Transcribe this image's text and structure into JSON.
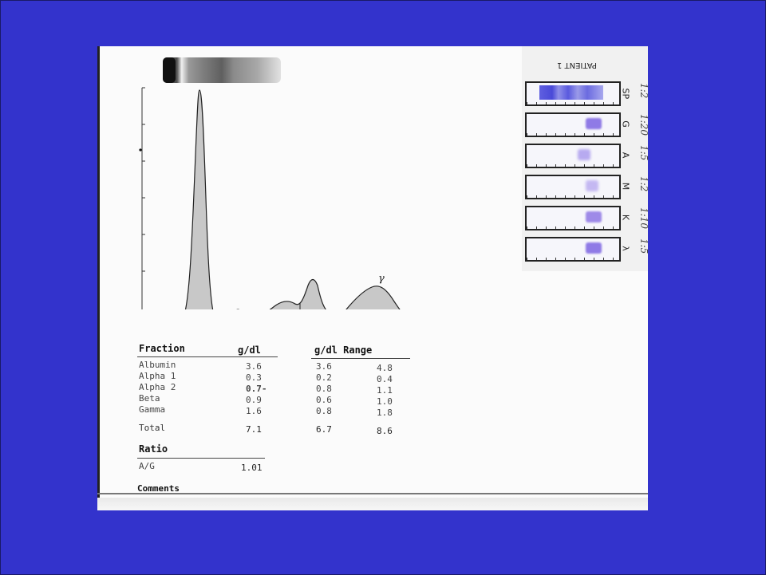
{
  "report": {
    "table_headers": {
      "fraction": "Fraction",
      "gdl": "g/dl",
      "gdl_range": "g/dl Range"
    },
    "rows": [
      {
        "name": "Albumin",
        "value": "3.6",
        "low": "3.6",
        "high": "4.8"
      },
      {
        "name": "Alpha 1",
        "value": "0.3",
        "low": "0.2",
        "high": "0.4"
      },
      {
        "name": "Alpha 2",
        "value": "0.7-",
        "low": "0.8",
        "high": "1.1"
      },
      {
        "name": "Beta",
        "value": "0.9",
        "low": "0.6",
        "high": "1.0"
      },
      {
        "name": "Gamma",
        "value": "1.6",
        "low": "0.8",
        "high": "1.8"
      }
    ],
    "total": {
      "name": "Total",
      "value": "7.1",
      "low": "6.7",
      "high": "8.6"
    },
    "ratio_header": "Ratio",
    "ratio": {
      "name": "A/G",
      "value": "1.01"
    },
    "comments_label": "Comments",
    "peak_mark": "γ"
  },
  "ife": {
    "title": "PATIENT 1",
    "lanes": [
      {
        "label": "SP",
        "dilution": "1:2",
        "band_color": "#5f5fe0"
      },
      {
        "label": "G",
        "dilution": "1:20",
        "band_color": "#8f7ae6"
      },
      {
        "label": "A",
        "dilution": "1:5",
        "band_color": "#b7aaf0"
      },
      {
        "label": "M",
        "dilution": "1:2",
        "band_color": "#c4b8f2"
      },
      {
        "label": "K",
        "dilution": "1:10",
        "band_color": "#9e8ae8"
      },
      {
        "label": "λ",
        "dilution": "1:5",
        "band_color": "#8f7ae6"
      }
    ]
  }
}
